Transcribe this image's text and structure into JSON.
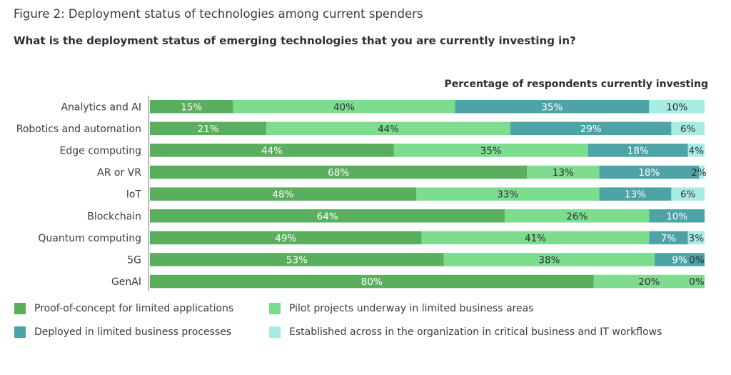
{
  "figure_title": "Figure 2: Deployment status of technologies among current spenders",
  "question": "What is the deployment status of emerging technologies that you are currently investing in?",
  "chart_data": {
    "type": "bar",
    "orientation": "horizontal",
    "stacked": true,
    "title": "Figure 2: Deployment status of technologies among current spenders",
    "subtitle": "What is the deployment status of emerging technologies that you are currently investing in?",
    "xlabel": "Percentage of respondents currently investing",
    "ylabel": "",
    "xlim": [
      0,
      100
    ],
    "grid": false,
    "legend_position": "bottom",
    "categories": [
      "Analytics and AI",
      "Robotics and automation",
      "Edge computing",
      "AR or VR",
      "IoT",
      "Blockchain",
      "Quantum computing",
      "5G",
      "GenAI"
    ],
    "series": [
      {
        "name": "Proof-of-concept for limited applications",
        "color": "#5aaf5e",
        "label_color": "#ffffff",
        "values": [
          15,
          21,
          44,
          68,
          48,
          64,
          49,
          53,
          80
        ]
      },
      {
        "name": "Pilot projects underway in limited business areas",
        "color": "#7ddc8e",
        "label_color": "#2e2e38",
        "values": [
          40,
          44,
          35,
          13,
          33,
          26,
          41,
          38,
          20
        ]
      },
      {
        "name": "Deployed in limited business processes",
        "color": "#4ea3a6",
        "label_color": "#ffffff",
        "values": [
          35,
          29,
          18,
          18,
          13,
          10,
          7,
          9,
          null
        ]
      },
      {
        "name": "Established across in the organization in critical business and IT workflows",
        "color": "#a8ebe3",
        "label_color": "#2e2e38",
        "values": [
          10,
          6,
          4,
          2,
          6,
          null,
          3,
          0,
          0
        ]
      }
    ]
  },
  "legend": [
    {
      "label": "Proof-of-concept for limited applications",
      "color": "#5aaf5e"
    },
    {
      "label": "Pilot projects underway in limited business areas",
      "color": "#7ddc8e"
    },
    {
      "label": "Deployed in limited business processes",
      "color": "#4ea3a6"
    },
    {
      "label": "Established across in the organization in critical business and IT workflows",
      "color": "#a8ebe3"
    }
  ]
}
